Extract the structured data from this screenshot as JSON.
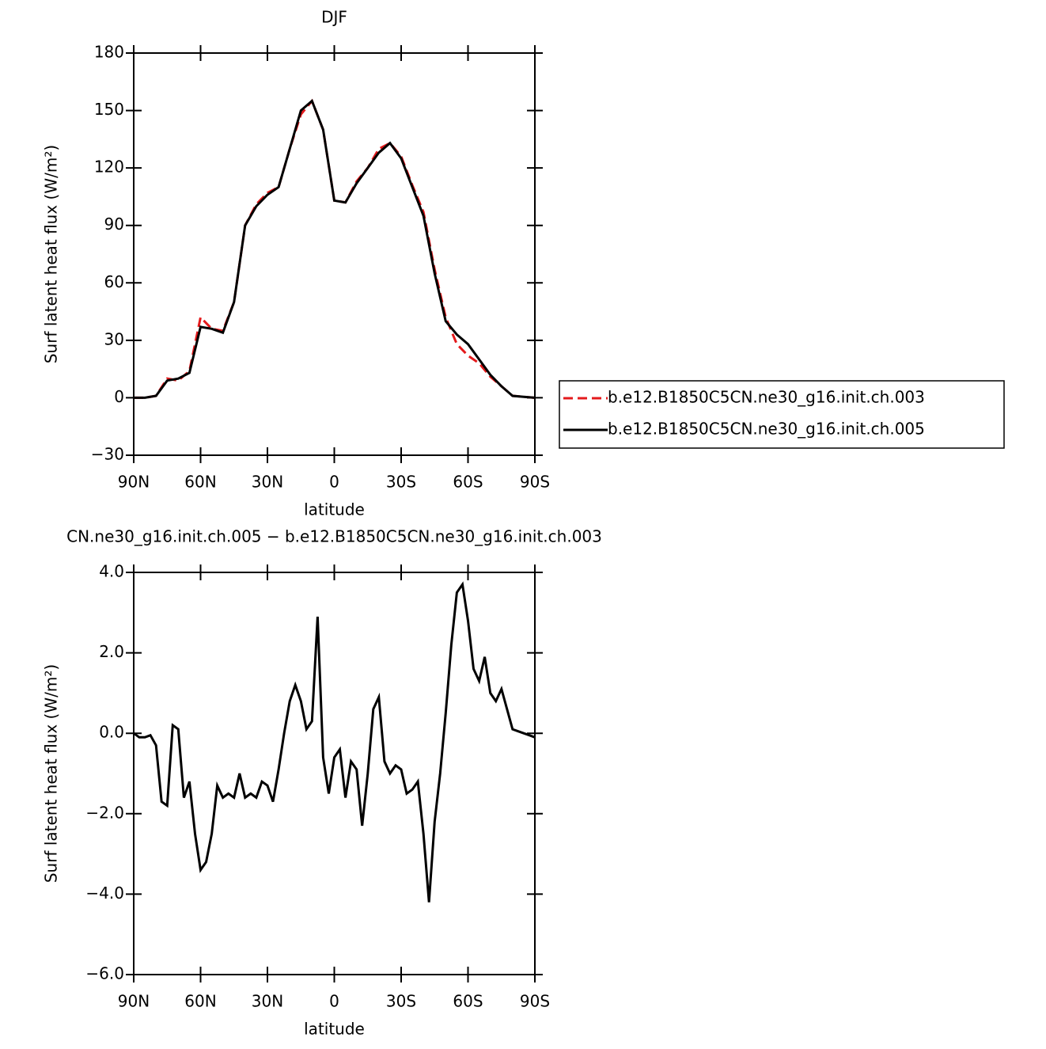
{
  "chart_data": [
    {
      "type": "line",
      "title": "DJF",
      "xlabel": "latitude",
      "ylabel": "Surf latent heat flux (W/m²)",
      "x": [
        90,
        85,
        80,
        75,
        70,
        65,
        60,
        55,
        50,
        45,
        40,
        35,
        30,
        25,
        20,
        15,
        10,
        5,
        0,
        -5,
        -10,
        -15,
        -20,
        -25,
        -30,
        -35,
        -40,
        -45,
        -50,
        -55,
        -60,
        -65,
        -70,
        -75,
        -80,
        -85,
        -90
      ],
      "series": [
        {
          "name": "b.e12.B1850C5CN.ne30_g16.init.ch.003",
          "color": "#e41a1c",
          "dash": true,
          "values": [
            0,
            0,
            1,
            10,
            9,
            14,
            42,
            36,
            35,
            50,
            90,
            101,
            107,
            110,
            130,
            148,
            155,
            140,
            103,
            102,
            113,
            120,
            130,
            133,
            126,
            111,
            97,
            67,
            42,
            28,
            22,
            18,
            11,
            6,
            1,
            0.5,
            0
          ]
        },
        {
          "name": "b.e12.B1850C5CN.ne30_g16.init.ch.005",
          "color": "#000000",
          "dash": false,
          "values": [
            0,
            0,
            1,
            9,
            10,
            13,
            37,
            36,
            34,
            50,
            90,
            100,
            106,
            110,
            130,
            150,
            155,
            140,
            103,
            102,
            112,
            120,
            128,
            133,
            125,
            110,
            95,
            65,
            40,
            33,
            28,
            20,
            12,
            6,
            1,
            0.5,
            0
          ]
        }
      ],
      "xlim": [
        90,
        -90
      ],
      "xticks": [
        {
          "value": 90,
          "label": "90N"
        },
        {
          "value": 60,
          "label": "60N"
        },
        {
          "value": 30,
          "label": "30N"
        },
        0,
        {
          "value": -30,
          "label": "30S"
        },
        {
          "value": -60,
          "label": "60S"
        },
        {
          "value": -90,
          "label": "90S"
        }
      ],
      "ylim": [
        -30,
        180
      ],
      "yticks": [
        {
          "value": -30,
          "label": "−30"
        },
        0,
        30,
        60,
        90,
        120,
        150,
        180
      ],
      "legend": "right"
    },
    {
      "type": "line",
      "title": "CN.ne30_g16.init.ch.005 − b.e12.B1850C5CN.ne30_g16.init.ch.003",
      "xlabel": "latitude",
      "ylabel": "Surf latent heat flux (W/m²)",
      "x": [
        90,
        87.5,
        85,
        82.5,
        80,
        77.5,
        75,
        72.5,
        70,
        67.5,
        65,
        62.5,
        60,
        57.5,
        55,
        52.5,
        50,
        47.5,
        45,
        42.5,
        40,
        37.5,
        35,
        32.5,
        30,
        27.5,
        25,
        22.5,
        20,
        17.5,
        15,
        12.5,
        10,
        7.5,
        5,
        2.5,
        0,
        -2.5,
        -5,
        -7.5,
        -10,
        -12.5,
        -15,
        -17.5,
        -20,
        -22.5,
        -25,
        -27.5,
        -30,
        -32.5,
        -35,
        -37.5,
        -40,
        -42.5,
        -45,
        -47.5,
        -50,
        -52.5,
        -55,
        -57.5,
        -60,
        -62.5,
        -65,
        -67.5,
        -70,
        -72.5,
        -75,
        -77.5,
        -80,
        -82.5,
        -85,
        -87.5,
        -90
      ],
      "series": [
        {
          "color": "#000000",
          "dash": false,
          "values": [
            0,
            -0.1,
            -0.1,
            -0.05,
            -0.3,
            -1.7,
            -1.8,
            0.2,
            0.1,
            -1.6,
            -1.2,
            -2.5,
            -3.4,
            -3.2,
            -2.5,
            -1.3,
            -1.6,
            -1.5,
            -1.6,
            -1.0,
            -1.6,
            -1.5,
            -1.6,
            -1.2,
            -1.3,
            -1.7,
            -0.9,
            0.0,
            0.8,
            1.2,
            0.8,
            0.1,
            0.3,
            2.9,
            -0.6,
            -1.5,
            -0.6,
            -0.4,
            -1.6,
            -0.7,
            -0.9,
            -2.3,
            -1.0,
            0.6,
            0.9,
            -0.7,
            -1.0,
            -0.8,
            -0.9,
            -1.5,
            -1.4,
            -1.2,
            -2.5,
            -4.2,
            -2.2,
            -1.0,
            0.5,
            2.2,
            3.5,
            3.7,
            2.8,
            1.6,
            1.3,
            1.9,
            1.0,
            0.8,
            1.1,
            0.6,
            0.1,
            0.05,
            0.0,
            -0.05,
            -0.1
          ]
        }
      ],
      "xlim": [
        90,
        -90
      ],
      "xticks": [
        {
          "value": 90,
          "label": "90N"
        },
        {
          "value": 60,
          "label": "60N"
        },
        {
          "value": 30,
          "label": "30N"
        },
        0,
        {
          "value": -30,
          "label": "30S"
        },
        {
          "value": -60,
          "label": "60S"
        },
        {
          "value": -90,
          "label": "90S"
        }
      ],
      "ylim": [
        -6,
        4
      ],
      "yticks": [
        {
          "value": -6,
          "label": "−6.0"
        },
        {
          "value": -4,
          "label": "−4.0"
        },
        {
          "value": -2,
          "label": "−2.0"
        },
        {
          "value": 0,
          "label": "0.0"
        },
        {
          "value": 2,
          "label": "2.0"
        },
        {
          "value": 4,
          "label": "4.0"
        }
      ]
    }
  ]
}
